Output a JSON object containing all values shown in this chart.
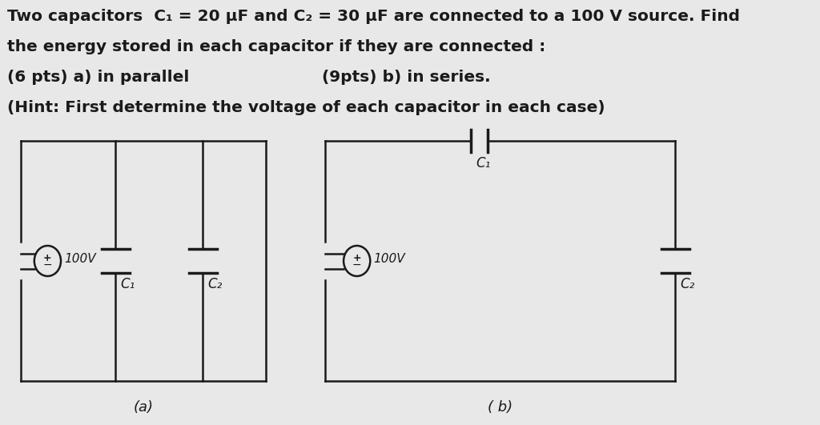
{
  "bg_color": "#e8e8e8",
  "text_color": "#1a1a1a",
  "line_color": "#1a1a1a",
  "text_line1": "Two capacitors  C₁ = 20 μF and C₂ = 30 μF are connected to a 100 V source. Find",
  "text_line2": "the energy stored in each capacitor if they are connected :",
  "text_line3a": "(6 pts) a) in parallel",
  "text_line3b": "(9pts) b) in series.",
  "text_line4": "(Hint: First determine the voltage of each capacitor in each case)",
  "label_a": "(a)",
  "label_b": "( b)",
  "font_size_main": 14.5,
  "font_size_label": 13,
  "font_size_circuit": 12,
  "lw": 1.8,
  "plate_lw": 2.5,
  "batt_r": 0.19,
  "plate_hw": 0.2
}
